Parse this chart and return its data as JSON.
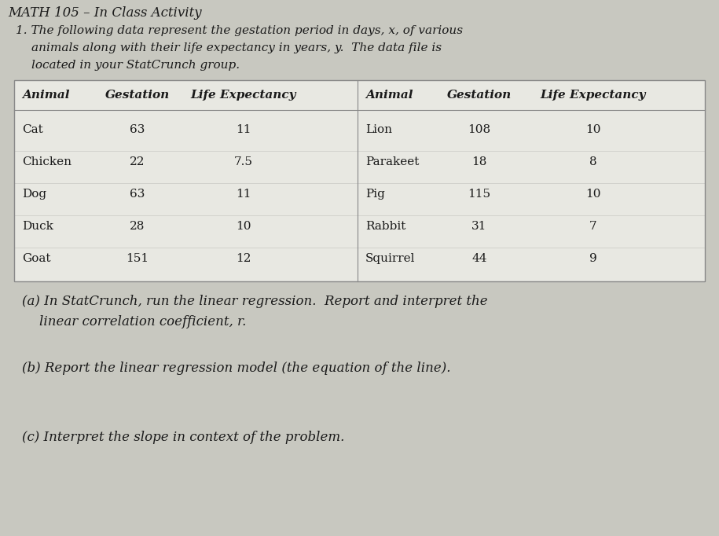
{
  "title": "MATH 105 – In Class Activity",
  "intro_line1": "1. The following data represent the gestation period in days, x, of various",
  "intro_line2": "animals along with their life expectancy in years, y.  The data file is",
  "intro_line3": "located in your StatCrunch group.",
  "table_headers": [
    "Animal",
    "Gestation",
    "Life Expectancy",
    "Animal",
    "Gestation",
    "Life Expectancy"
  ],
  "left_data": [
    [
      "Cat",
      "63",
      "11"
    ],
    [
      "Chicken",
      "22",
      "7.5"
    ],
    [
      "Dog",
      "63",
      "11"
    ],
    [
      "Duck",
      "28",
      "10"
    ],
    [
      "Goat",
      "151",
      "12"
    ]
  ],
  "right_data": [
    [
      "Lion",
      "108",
      "10"
    ],
    [
      "Parakeet",
      "18",
      "8"
    ],
    [
      "Pig",
      "115",
      "10"
    ],
    [
      "Rabbit",
      "31",
      "7"
    ],
    [
      "Squirrel",
      "44",
      "9"
    ]
  ],
  "part_a_line1": "(a) In StatCrunch, run the linear regression.  Report and interpret the",
  "part_a_line2": "linear correlation coefficient, r.",
  "part_b": "(b) Report the linear regression model (the equation of the line).",
  "part_c": "(c) Interpret the slope in context of the problem.",
  "bg_color": "#c8c8c0",
  "table_bg": "#e8e8e2",
  "text_color": "#1a1a1a",
  "header_color": "#1a1a1a",
  "line_color": "#888888"
}
